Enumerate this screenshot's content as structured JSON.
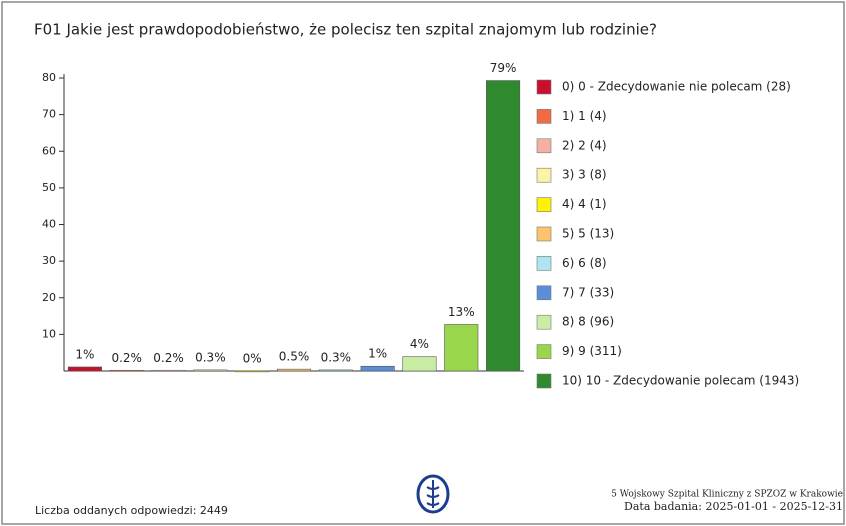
{
  "chart_data": {
    "type": "bar",
    "title": "F01 Jakie jest prawdopodobieństwo, że polecisz ten szpital znajomym lub rodzinie?",
    "categories": [
      "0) 0 - Zdecydowanie nie polecam (28)",
      "1) 1 (4)",
      "2) 2 (4)",
      "3) 3 (8)",
      "4) 4 (1)",
      "5) 5 (13)",
      "6) 6 (8)",
      "7) 7 (33)",
      "8) 8 (96)",
      "9) 9 (311)",
      "10) 10 - Zdecydowanie polecam (1943)"
    ],
    "values": [
      1.1,
      0.2,
      0.2,
      0.3,
      0.04,
      0.5,
      0.3,
      1.3,
      3.9,
      12.7,
      79.3
    ],
    "value_labels": [
      "1%",
      "0.2%",
      "0.2%",
      "0.3%",
      "0%",
      "0.5%",
      "0.3%",
      "1%",
      "4%",
      "13%",
      "79%"
    ],
    "colors": [
      "#c8102e",
      "#f06a45",
      "#f5b0a6",
      "#fdf3a6",
      "#fff200",
      "#fbc46a",
      "#ade6f0",
      "#5a8fd8",
      "#c9eea3",
      "#9ad64b",
      "#2f8a2f"
    ],
    "ylim": [
      0,
      80
    ],
    "yticks": [
      10,
      20,
      30,
      40,
      50,
      60,
      70,
      80
    ],
    "footer_left": "Liczba oddanych odpowiedzi: 2449",
    "footer_right_1": "5 Wojskowy Szpital Kliniczny z SPZOZ w Krakowie",
    "footer_right_2": "Data badania: 2025-01-01 - 2025-12-31"
  }
}
